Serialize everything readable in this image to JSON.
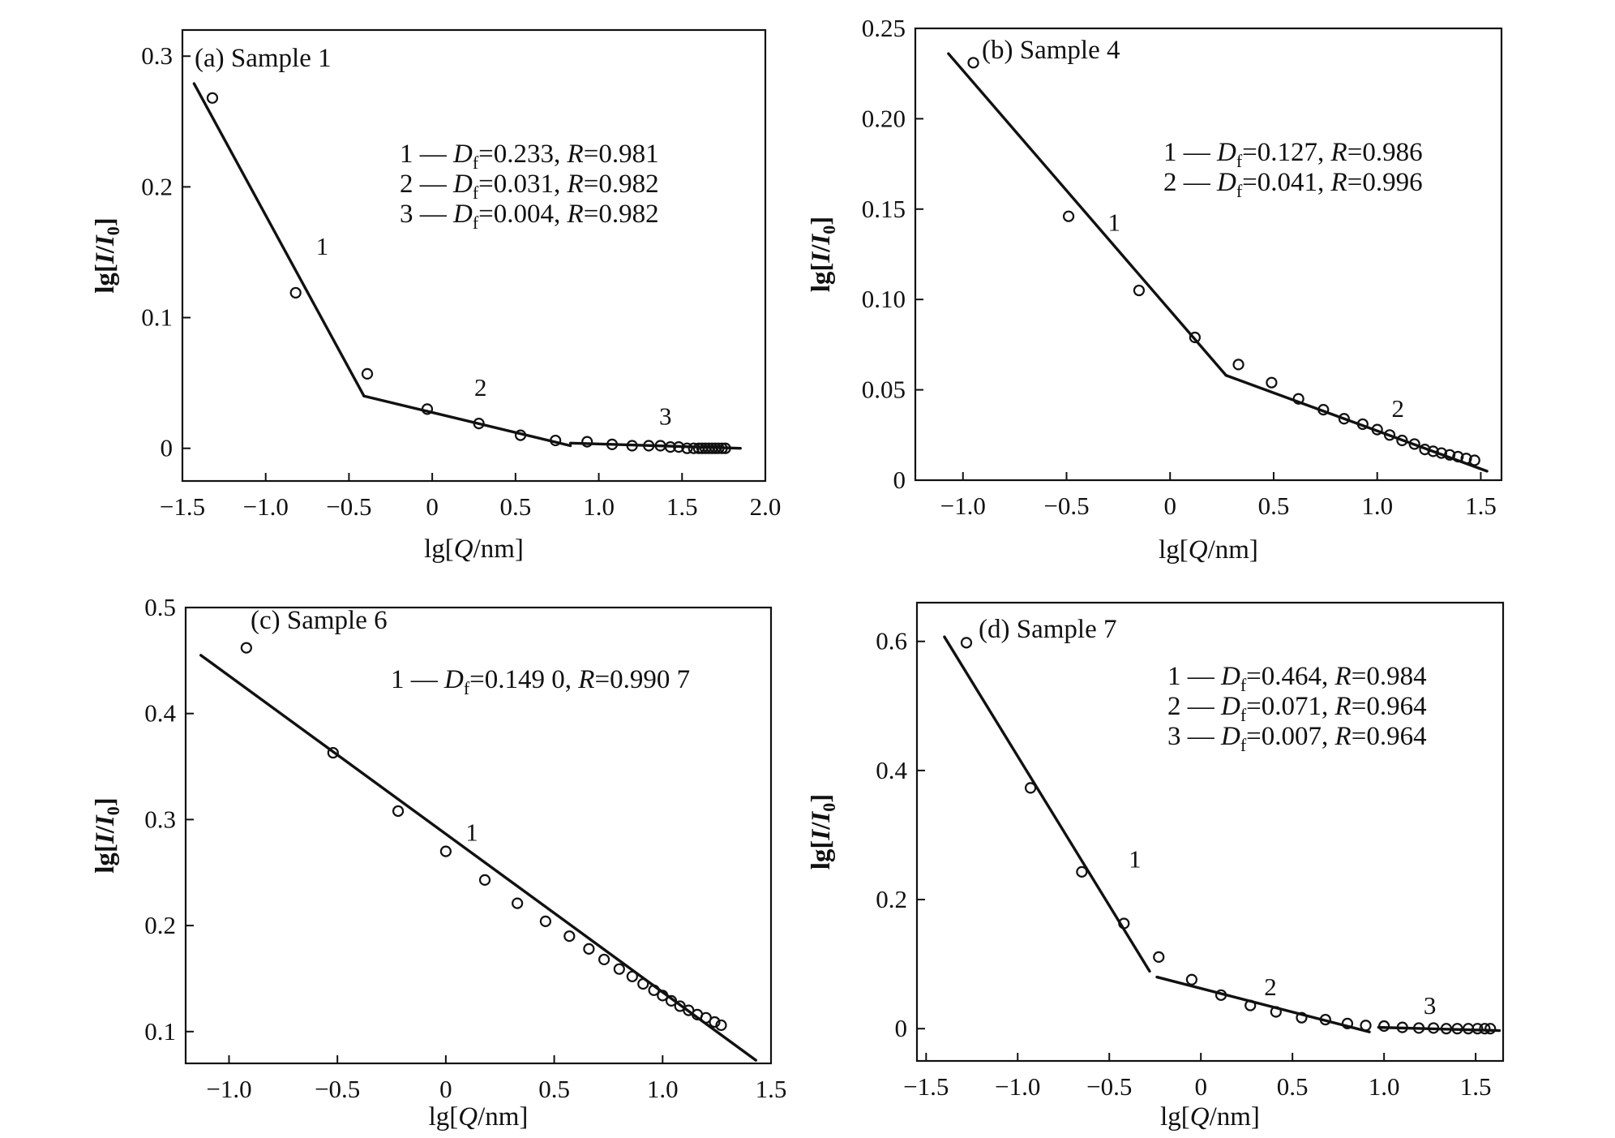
{
  "figure": {
    "panels": [
      {
        "id": "a",
        "label": "(a)",
        "sample": "Sample 1",
        "xlabel": {
          "prefix": "lg[",
          "italic": "Q",
          "suffix": "/nm]"
        },
        "ylabel": {
          "prefix": "lg[",
          "italic": "I",
          "mid": "/",
          "italic2": "I",
          "sub": "0",
          "suffix": "]"
        },
        "legend": [
          {
            "num": "1",
            "df": "=0.233,",
            "r": "=0.981"
          },
          {
            "num": "2",
            "df": "=0.031,",
            "r": "=0.982"
          },
          {
            "num": "3",
            "df": "=0.004,",
            "r": "=0.982"
          }
        ]
      },
      {
        "id": "b",
        "label": "(b)",
        "sample": "Sample 4",
        "xlabel": {
          "prefix": "lg[",
          "italic": "Q",
          "suffix": "/nm]"
        },
        "ylabel": {
          "prefix": "lg[",
          "italic": "I",
          "mid": "/",
          "italic2": "I",
          "sub": "0",
          "suffix": "]"
        },
        "legend": [
          {
            "num": "1",
            "df": "=0.127,",
            "r": "=0.986"
          },
          {
            "num": "2",
            "df": "=0.041,",
            "r": "=0.996"
          }
        ]
      },
      {
        "id": "c",
        "label": "(c)",
        "sample": "Sample 6",
        "xlabel": {
          "prefix": "lg[",
          "italic": "Q",
          "suffix": "/nm]"
        },
        "ylabel": {
          "prefix": "lg[",
          "italic": "I",
          "mid": "/",
          "italic2": "I",
          "sub": "0",
          "suffix": "]"
        },
        "legend": [
          {
            "num": "1",
            "df": "=0.149 0,",
            "r": "=0.990 7"
          }
        ]
      },
      {
        "id": "d",
        "label": "(d)",
        "sample": "Sample 7",
        "xlabel": {
          "prefix": "lg[",
          "italic": "Q",
          "suffix": "/nm]"
        },
        "ylabel": {
          "prefix": "lg[",
          "italic": "I",
          "mid": "/",
          "italic2": "I",
          "sub": "0",
          "suffix": "]"
        },
        "legend": [
          {
            "num": "1",
            "df": "=0.464,",
            "r": "=0.984"
          },
          {
            "num": "2",
            "df": "=0.071,",
            "r": "=0.964"
          },
          {
            "num": "3",
            "df": "=0.007,",
            "r": "=0.964"
          }
        ]
      }
    ]
  },
  "chart_data": [
    {
      "type": "scatter",
      "title": "(a) Sample 1",
      "xlabel": "lg[Q/nm]",
      "ylabel": "lg[I/I0]",
      "xlim": [
        -1.5,
        2.0
      ],
      "ylim": [
        -0.025,
        0.32
      ],
      "xticks": [
        -1.5,
        -1.0,
        -0.5,
        0,
        0.5,
        1.0,
        1.5,
        2.0
      ],
      "xtick_labels": [
        "−1.5",
        "−1.0",
        "−0.5",
        "0",
        "0.5",
        "1.0",
        "1.5",
        "2.0"
      ],
      "yticks": [
        0,
        0.1,
        0.2,
        0.3
      ],
      "ytick_labels": [
        "0",
        "0.1",
        "0.2",
        "0.3"
      ],
      "grid": false,
      "series": [
        {
          "x": [
            -1.32,
            -0.82,
            -0.39,
            -0.03,
            0.28,
            0.53,
            0.74,
            0.93,
            1.08,
            1.2,
            1.3,
            1.37,
            1.43,
            1.48,
            1.53,
            1.57,
            1.6,
            1.62,
            1.64,
            1.66,
            1.68,
            1.7,
            1.72,
            1.74,
            1.76
          ],
          "y": [
            0.268,
            0.119,
            0.057,
            0.03,
            0.019,
            0.01,
            0.006,
            0.005,
            0.003,
            0.002,
            0.002,
            0.002,
            0.001,
            0.001,
            0.0,
            0.0,
            0.0,
            0.0,
            0.0,
            0.0,
            0.0,
            0.0,
            0.0,
            0.0,
            0.0
          ]
        }
      ],
      "fits": [
        {
          "label": "1",
          "x": [
            -1.43,
            -0.41
          ],
          "y": [
            0.279,
            0.04
          ]
        },
        {
          "label": "2",
          "x": [
            -0.41,
            0.83
          ],
          "y": [
            0.04,
            0.002
          ]
        },
        {
          "label": "3",
          "x": [
            0.83,
            1.85
          ],
          "y": [
            0.004,
            0.0
          ]
        }
      ],
      "fit_label_pos": [
        {
          "label": "1",
          "x": -0.66,
          "y": 0.148
        },
        {
          "label": "2",
          "x": 0.29,
          "y": 0.04
        },
        {
          "label": "3",
          "x": 1.4,
          "y": 0.018
        }
      ]
    },
    {
      "type": "scatter",
      "title": "(b) Sample 4",
      "xlabel": "lg[Q/nm]",
      "ylabel": "lg[I/I0]",
      "xlim": [
        -1.23,
        1.6
      ],
      "ylim": [
        0,
        0.25
      ],
      "xticks": [
        -1.0,
        -0.5,
        0,
        0.5,
        1.0,
        1.5
      ],
      "xtick_labels": [
        "−1.0",
        "−0.5",
        "0",
        "0.5",
        "1.0",
        "1.5"
      ],
      "yticks": [
        0,
        0.05,
        0.1,
        0.15,
        0.2,
        0.25
      ],
      "ytick_labels": [
        "0",
        "0.05",
        "0.10",
        "0.15",
        "0.20",
        "0.25"
      ],
      "grid": false,
      "series": [
        {
          "x": [
            -0.95,
            -0.49,
            -0.15,
            0.12,
            0.33,
            0.49,
            0.62,
            0.74,
            0.84,
            0.93,
            1.0,
            1.06,
            1.12,
            1.18,
            1.23,
            1.27,
            1.31,
            1.35,
            1.39,
            1.43,
            1.47
          ],
          "y": [
            0.231,
            0.146,
            0.105,
            0.079,
            0.064,
            0.054,
            0.045,
            0.039,
            0.034,
            0.031,
            0.028,
            0.025,
            0.022,
            0.02,
            0.017,
            0.016,
            0.015,
            0.014,
            0.013,
            0.012,
            0.011
          ]
        }
      ],
      "fits": [
        {
          "label": "1",
          "x": [
            -1.07,
            0.27
          ],
          "y": [
            0.236,
            0.058
          ]
        },
        {
          "label": "2",
          "x": [
            0.27,
            1.53
          ],
          "y": [
            0.058,
            0.005
          ]
        }
      ],
      "fit_label_pos": [
        {
          "label": "1",
          "x": -0.27,
          "y": 0.138
        },
        {
          "label": "2",
          "x": 1.1,
          "y": 0.035
        }
      ]
    },
    {
      "type": "scatter",
      "title": "(c) Sample 6",
      "xlabel": "lg[Q/nm]",
      "ylabel": "lg[I/I0]",
      "xlim": [
        -1.2,
        1.5
      ],
      "ylim": [
        0.07,
        0.5
      ],
      "xticks": [
        -1.0,
        -0.5,
        0,
        0.5,
        1.0,
        1.5
      ],
      "xtick_labels": [
        "−1.0",
        "−0.5",
        "0",
        "0.5",
        "1.0",
        "1.5"
      ],
      "yticks": [
        0.1,
        0.2,
        0.3,
        0.4,
        0.5
      ],
      "ytick_labels": [
        "0.1",
        "0.2",
        "0.3",
        "0.4",
        "0.5"
      ],
      "grid": false,
      "series": [
        {
          "x": [
            -0.92,
            -0.52,
            -0.22,
            0.0,
            0.18,
            0.33,
            0.46,
            0.57,
            0.66,
            0.73,
            0.8,
            0.86,
            0.91,
            0.96,
            1.0,
            1.04,
            1.08,
            1.12,
            1.16,
            1.2,
            1.24,
            1.27
          ],
          "y": [
            0.462,
            0.363,
            0.308,
            0.27,
            0.243,
            0.221,
            0.204,
            0.19,
            0.178,
            0.168,
            0.159,
            0.152,
            0.145,
            0.139,
            0.134,
            0.129,
            0.124,
            0.12,
            0.116,
            0.113,
            0.109,
            0.106
          ]
        }
      ],
      "fits": [
        {
          "label": "1",
          "x": [
            -1.13,
            1.43
          ],
          "y": [
            0.455,
            0.073
          ]
        }
      ],
      "fit_label_pos": [
        {
          "label": "1",
          "x": 0.12,
          "y": 0.28
        }
      ]
    },
    {
      "type": "scatter",
      "title": "(d) Sample 7",
      "xlabel": "lg[Q/nm]",
      "ylabel": "lg[I/I0]",
      "xlim": [
        -1.55,
        1.65
      ],
      "ylim": [
        -0.05,
        0.66
      ],
      "xticks": [
        -1.5,
        -1.0,
        -0.5,
        0,
        0.5,
        1.0,
        1.5
      ],
      "xtick_labels": [
        "−1.5",
        "−1.0",
        "−0.5",
        "0",
        "0.5",
        "1.0",
        "1.5"
      ],
      "yticks": [
        0,
        0.2,
        0.4,
        0.6
      ],
      "ytick_labels": [
        "0",
        "0.2",
        "0.4",
        "0.6"
      ],
      "grid": false,
      "series": [
        {
          "x": [
            -1.28,
            -0.93,
            -0.65,
            -0.42,
            -0.23,
            -0.05,
            0.11,
            0.27,
            0.41,
            0.55,
            0.68,
            0.8,
            0.9,
            1.0,
            1.1,
            1.19,
            1.27,
            1.34,
            1.4,
            1.46,
            1.51,
            1.55,
            1.58
          ],
          "y": [
            0.598,
            0.373,
            0.243,
            0.163,
            0.111,
            0.076,
            0.052,
            0.036,
            0.026,
            0.017,
            0.014,
            0.008,
            0.005,
            0.004,
            0.002,
            0.001,
            0.001,
            0.0,
            0.0,
            0.0,
            0.0,
            0.0,
            0.0
          ]
        }
      ],
      "fits": [
        {
          "label": "1",
          "x": [
            -1.4,
            -0.28
          ],
          "y": [
            0.607,
            0.089
          ]
        },
        {
          "label": "2",
          "x": [
            -0.24,
            0.92
          ],
          "y": [
            0.08,
            -0.005
          ]
        },
        {
          "label": "3",
          "x": [
            0.97,
            1.63
          ],
          "y": [
            0.002,
            -0.003
          ]
        }
      ],
      "fit_label_pos": [
        {
          "label": "1",
          "x": -0.36,
          "y": 0.25
        },
        {
          "label": "2",
          "x": 0.38,
          "y": 0.052
        },
        {
          "label": "3",
          "x": 1.25,
          "y": 0.023
        }
      ]
    }
  ]
}
